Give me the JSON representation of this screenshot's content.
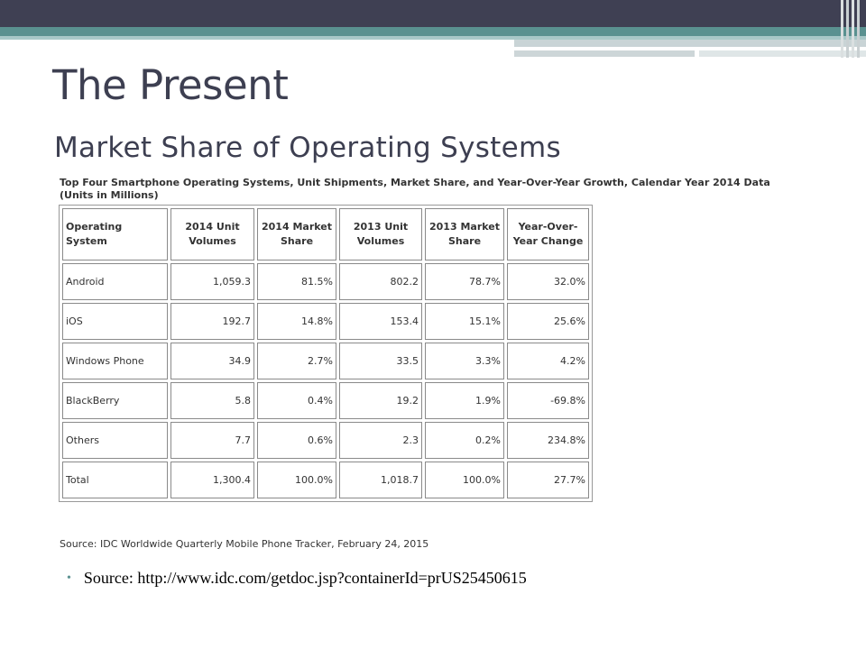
{
  "slide": {
    "title": "The Present",
    "subtitle": "Market Share of Operating Systems"
  },
  "table": {
    "caption": "Top Four Smartphone Operating Systems, Unit Shipments, Market Share, and Year-Over-Year Growth, Calendar Year 2014 Data (Units in Millions)",
    "headers": [
      "Operating System",
      "2014 Unit Volumes",
      "2014 Market Share",
      "2013 Unit Volumes",
      "2013 Market Share",
      "Year-Over-Year Change"
    ],
    "rows": [
      [
        "Android",
        "1,059.3",
        "81.5%",
        "802.2",
        "78.7%",
        "32.0%"
      ],
      [
        "iOS",
        "192.7",
        "14.8%",
        "153.4",
        "15.1%",
        "25.6%"
      ],
      [
        "Windows Phone",
        "34.9",
        "2.7%",
        "33.5",
        "3.3%",
        "4.2%"
      ],
      [
        "BlackBerry",
        "5.8",
        "0.4%",
        "19.2",
        "1.9%",
        "-69.8%"
      ],
      [
        "Others",
        "7.7",
        "0.6%",
        "2.3",
        "0.2%",
        "234.8%"
      ],
      [
        "Total",
        "1,300.4",
        "100.0%",
        "1,018.7",
        "100.0%",
        "27.7%"
      ]
    ],
    "source": "Source: IDC Worldwide Quarterly Mobile Phone Tracker, February 24, 2015"
  },
  "bullets": [
    {
      "text": "Source: http://www.idc.com/getdoc.jsp?containerId=prUS25450615"
    }
  ],
  "colors": {
    "banner_dark": "#3f4053",
    "banner_teal": "#5a9190",
    "title_text": "#3d3f51",
    "bullet": "#5a9190"
  }
}
